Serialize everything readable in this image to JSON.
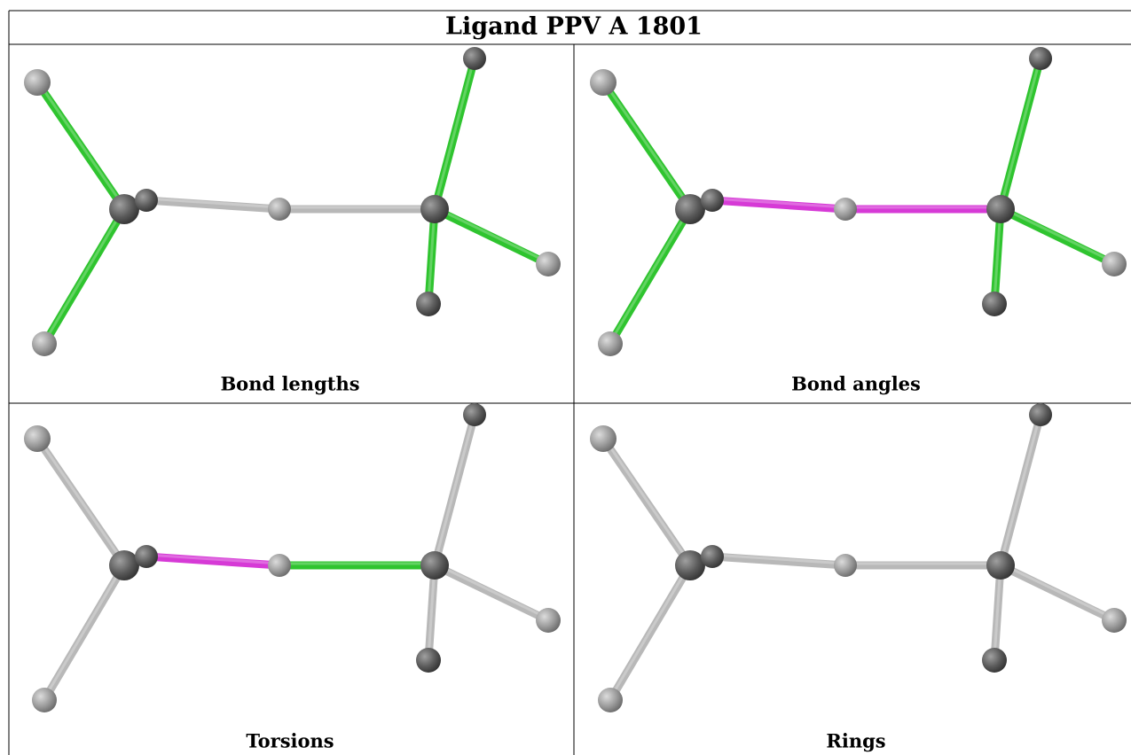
{
  "title": "Ligand PPV A 1801",
  "panels": [
    {
      "caption": "Bond lengths"
    },
    {
      "caption": "Bond angles"
    },
    {
      "caption": "Torsions"
    },
    {
      "caption": "Rings"
    }
  ]
}
